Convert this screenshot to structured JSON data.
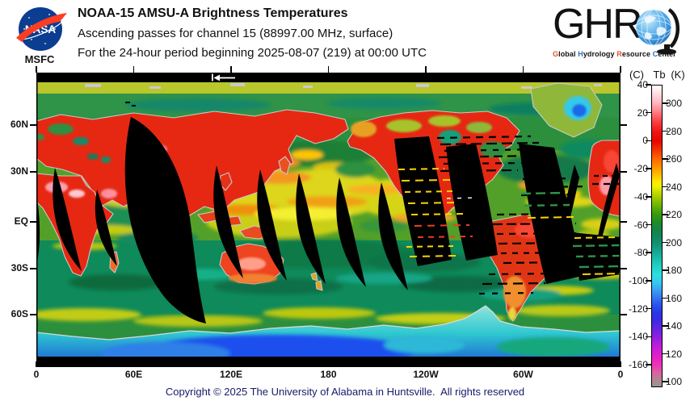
{
  "header": {
    "nasa_logo": {
      "text": "NASA",
      "msfc": "MSFC"
    },
    "title": "NOAA-15 AMSU-A Brightness Temperatures",
    "subtitle1": "Ascending passes for channel 15 (88997.00 MHz, surface)",
    "subtitle2": "For the 24-hour period beginning 2025-08-07 (219) at 00:00 UTC",
    "ghrc": {
      "acronym": "GHR",
      "tagline_words": [
        {
          "first": "G",
          "rest": "lobal",
          "color": "#e2512b"
        },
        {
          "first": "H",
          "rest": "ydrology",
          "color": "#2a72bd"
        },
        {
          "first": "R",
          "rest": "esource",
          "color": "#e2512b"
        },
        {
          "first": "C",
          "rest": "enter",
          "color": "#2a72bd"
        }
      ]
    }
  },
  "map": {
    "lat_labels": [
      "60N",
      "30N",
      "EQ",
      "30S",
      "60S"
    ],
    "lon_labels": [
      "0",
      "60E",
      "120E",
      "180",
      "120W",
      "60W",
      "0"
    ]
  },
  "colorbar": {
    "unit_c": "(C)",
    "quantity": "Tb",
    "unit_k": "(K)",
    "c_ticks": [
      "40",
      "20",
      "0",
      "-20",
      "-40",
      "-60",
      "-80",
      "-100",
      "-120",
      "-140",
      "-160"
    ],
    "k_ticks": [
      "300",
      "280",
      "260",
      "240",
      "220",
      "200",
      "180",
      "160",
      "140",
      "120",
      "100"
    ]
  },
  "footer": {
    "copyright": "Copyright © 2025 The University of Alabama in Huntsville.  All rights reserved"
  },
  "colors": {
    "nasa_blue": "#0b3d91",
    "nasa_red": "#fc3d21",
    "ghrc_orange": "#e2512b",
    "ghrc_blue": "#2a72bd",
    "copyright_navy": "#18186b",
    "hot_land_red": "#e62812",
    "ocean_green": "#2c8f3e",
    "antarctica_blue": "#1a50ee",
    "missing_data": "#000000"
  }
}
